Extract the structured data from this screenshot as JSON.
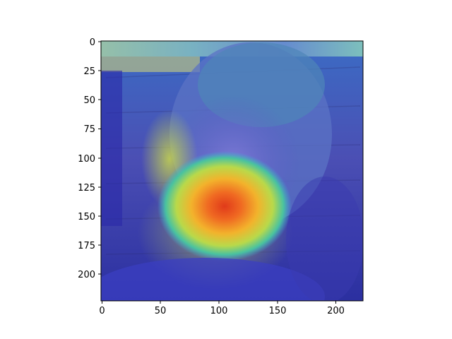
{
  "image": {
    "description_icon": "heatmap-overlay-photo",
    "x_extent": [
      0,
      224
    ],
    "y_extent": [
      0,
      224
    ],
    "y_axis_inverted": true,
    "colormap": "jet",
    "hotspot_data_center": [
      100,
      140
    ]
  },
  "axes": {
    "x_ticks": [
      "0",
      "50",
      "100",
      "150",
      "200"
    ],
    "x_tick_values": [
      0,
      50,
      100,
      150,
      200
    ],
    "y_ticks": [
      "0",
      "25",
      "50",
      "75",
      "100",
      "125",
      "150",
      "175",
      "200"
    ],
    "y_tick_values": [
      0,
      25,
      50,
      75,
      100,
      125,
      150,
      175,
      200
    ]
  }
}
